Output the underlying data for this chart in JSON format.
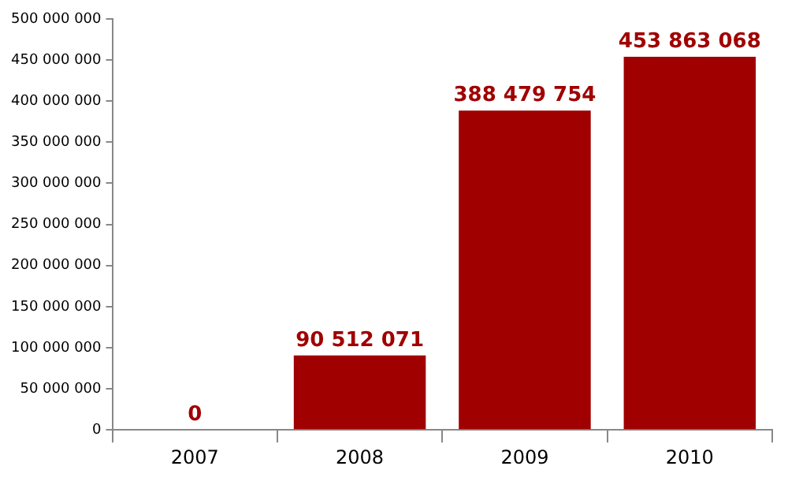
{
  "chart_data": {
    "type": "bar",
    "categories": [
      "2007",
      "2008",
      "2009",
      "2010"
    ],
    "values": [
      0,
      90512071,
      388479754,
      453863068
    ],
    "value_labels": [
      "0",
      "90 512 071",
      "388 479 754",
      "453 863 068"
    ],
    "color": "#a00000",
    "ylim": [
      0,
      500000000
    ],
    "yticks": [
      {
        "value": 0,
        "label": "0"
      },
      {
        "value": 50000000,
        "label": "50 000 000"
      },
      {
        "value": 100000000,
        "label": "100 000 000"
      },
      {
        "value": 150000000,
        "label": "150 000 000"
      },
      {
        "value": 200000000,
        "label": "200 000 000"
      },
      {
        "value": 250000000,
        "label": "250 000 000"
      },
      {
        "value": 300000000,
        "label": "300 000 000"
      },
      {
        "value": 350000000,
        "label": "350 000 000"
      },
      {
        "value": 400000000,
        "label": "400 000 000"
      },
      {
        "value": 450000000,
        "label": "450 000 000"
      },
      {
        "value": 500000000,
        "label": "500 000 000"
      }
    ],
    "grid": false,
    "legend": false
  }
}
